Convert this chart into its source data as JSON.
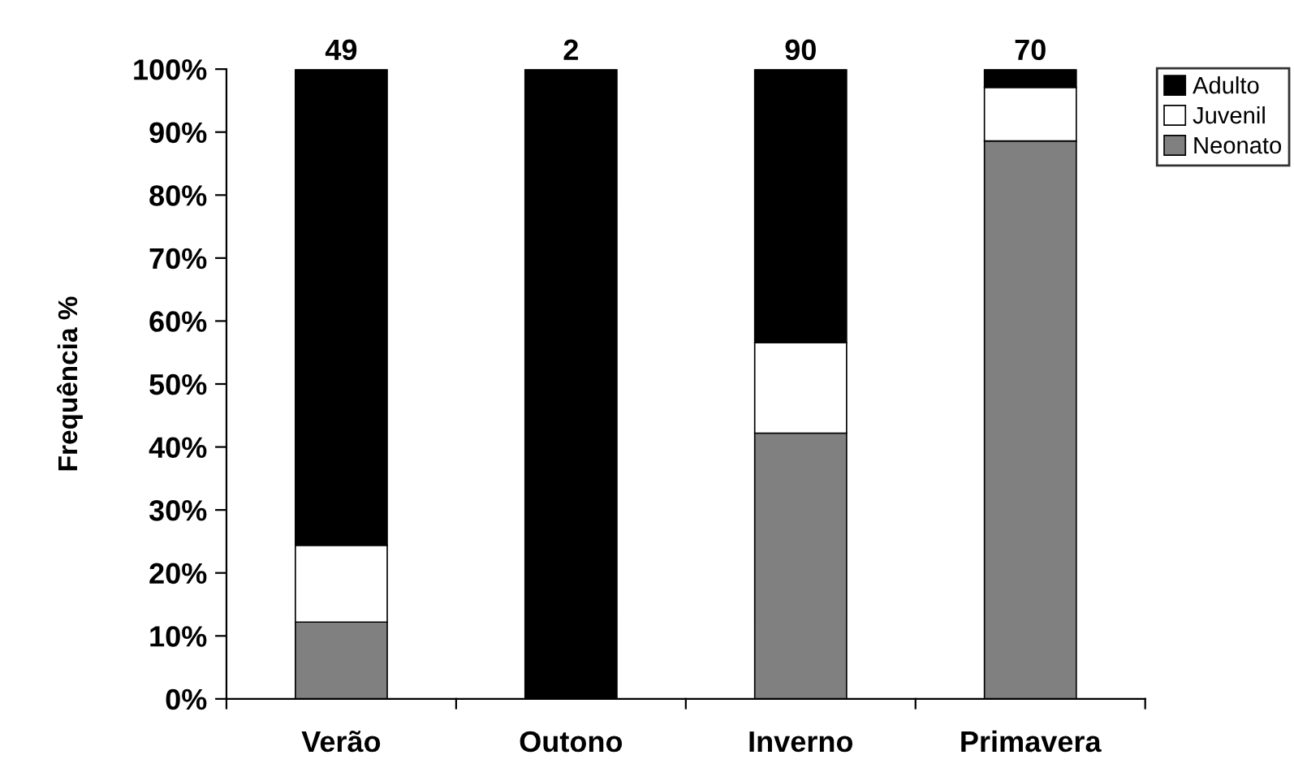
{
  "chart_data": {
    "type": "bar",
    "stacked": true,
    "ylabel": "Frequência %",
    "categories": [
      "Verão",
      "Outono",
      "Inverno",
      "Primavera"
    ],
    "series": [
      {
        "name": "Neonato",
        "color": "#808080",
        "values": [
          12.2,
          0,
          42.2,
          88.6
        ]
      },
      {
        "name": "Juvenil",
        "color": "#ffffff",
        "values": [
          12.2,
          0,
          14.4,
          8.5
        ]
      },
      {
        "name": "Adulto",
        "color": "#000000",
        "values": [
          75.6,
          100,
          43.4,
          2.9
        ]
      }
    ],
    "annotations": [
      {
        "text": "49",
        "x": "Verão",
        "y": 100
      },
      {
        "text": "2",
        "x": "Outono",
        "y": 100
      },
      {
        "text": "90",
        "x": "Inverno",
        "y": 100
      },
      {
        "text": "70",
        "x": "Primavera",
        "y": 100
      }
    ],
    "ylim": [
      0,
      100
    ],
    "yticks": [
      {
        "value": 0,
        "label": "0%"
      },
      {
        "value": 10,
        "label": "10%"
      },
      {
        "value": 20,
        "label": "20%"
      },
      {
        "value": 30,
        "label": "30%"
      },
      {
        "value": 40,
        "label": "40%"
      },
      {
        "value": 50,
        "label": "50%"
      },
      {
        "value": 60,
        "label": "60%"
      },
      {
        "value": 70,
        "label": "70%"
      },
      {
        "value": 80,
        "label": "80%"
      },
      {
        "value": 90,
        "label": "90%"
      },
      {
        "value": 100,
        "label": "100%"
      }
    ],
    "grid": false,
    "legend": "top right"
  }
}
